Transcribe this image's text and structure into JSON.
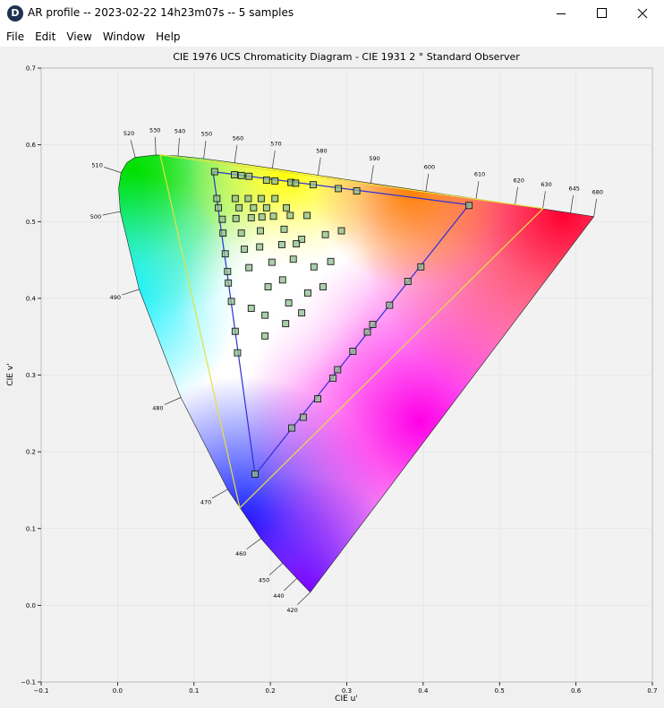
{
  "window": {
    "icon": "D",
    "title": "AR profile -- 2023-02-22 14h23m07s -- 5 samples"
  },
  "menu": [
    "File",
    "Edit",
    "View",
    "Window",
    "Help"
  ],
  "chart_data": {
    "type": "chromaticity",
    "title": "CIE 1976 UCS Chromaticity Diagram - CIE 1931 2 ° Standard Observer",
    "x_label": "CIE u'",
    "y_label": "CIE v'",
    "xlim": [
      -0.1,
      0.7
    ],
    "ylim": [
      -0.1,
      0.7
    ],
    "xticks": [
      {
        "value": -0.1,
        "label": "−0.1"
      },
      {
        "value": 0,
        "label": "0.0"
      },
      0.1,
      0.2,
      0.3,
      0.4,
      0.5,
      0.6,
      0.7
    ],
    "yticks": [
      {
        "value": -0.1,
        "label": "−0.1"
      },
      {
        "value": 0,
        "label": "0.0"
      },
      0.1,
      0.2,
      0.3,
      0.4,
      0.5,
      0.6,
      0.7
    ],
    "grid": true,
    "locus": {
      "wavelengths": [
        420,
        440,
        450,
        460,
        470,
        480,
        490,
        500,
        null,
        510,
        null,
        520,
        530,
        540,
        550,
        560,
        570,
        580,
        590,
        600,
        610,
        620,
        630,
        645,
        680
      ],
      "u": [
        0.2522,
        0.2347,
        0.2161,
        0.1877,
        0.1441,
        0.0828,
        0.0282,
        0.0035,
        0.0014,
        0.0046,
        0.0123,
        0.0231,
        0.0501,
        0.0792,
        0.1127,
        0.1531,
        0.2026,
        0.2623,
        0.3315,
        0.4035,
        0.4692,
        0.5203,
        0.5565,
        0.5929,
        0.6234
      ],
      "v": [
        0.0169,
        0.035,
        0.0549,
        0.0871,
        0.151,
        0.2708,
        0.4117,
        0.5131,
        0.5432,
        0.5638,
        0.577,
        0.5837,
        0.5868,
        0.5856,
        0.5821,
        0.5766,
        0.5694,
        0.5604,
        0.5501,
        0.5393,
        0.5296,
        0.5219,
        0.5165,
        0.5111,
        0.5065
      ]
    },
    "gamuts": [
      {
        "color": "#e6e040",
        "u": [
          0.0558,
          0.557,
          0.16
        ],
        "v": [
          0.587,
          0.517,
          0.127
        ]
      },
      {
        "color": "#2f2fd8",
        "u": [
          0.125,
          0.46,
          0.18
        ],
        "v": [
          0.565,
          0.522,
          0.17
        ]
      }
    ],
    "samples": {
      "color": "#8fbf8f",
      "u": [
        0.127,
        0.153,
        0.162,
        0.172,
        0.195,
        0.206,
        0.227,
        0.233,
        0.256,
        0.289,
        0.313,
        0.46,
        0.397,
        0.38,
        0.356,
        0.334,
        0.327,
        0.308,
        0.288,
        0.282,
        0.262,
        0.243,
        0.228,
        0.18,
        0.13,
        0.132,
        0.137,
        0.138,
        0.141,
        0.144,
        0.145,
        0.149,
        0.154,
        0.157,
        0.154,
        0.171,
        0.188,
        0.206,
        0.159,
        0.178,
        0.195,
        0.221,
        0.155,
        0.175,
        0.189,
        0.204,
        0.226,
        0.248,
        0.162,
        0.187,
        0.218,
        0.241,
        0.272,
        0.293,
        0.166,
        0.186,
        0.215,
        0.234,
        0.172,
        0.202,
        0.23,
        0.257,
        0.279,
        0.197,
        0.216,
        0.249,
        0.269,
        0.175,
        0.224,
        0.241,
        0.22,
        0.193,
        0.193
      ],
      "v": [
        0.565,
        0.561,
        0.56,
        0.559,
        0.554,
        0.553,
        0.551,
        0.55,
        0.548,
        0.543,
        0.54,
        0.521,
        0.441,
        0.422,
        0.391,
        0.366,
        0.356,
        0.331,
        0.307,
        0.296,
        0.269,
        0.245,
        0.231,
        0.171,
        0.53,
        0.518,
        0.503,
        0.485,
        0.458,
        0.435,
        0.42,
        0.396,
        0.357,
        0.329,
        0.53,
        0.53,
        0.53,
        0.53,
        0.518,
        0.518,
        0.518,
        0.518,
        0.504,
        0.505,
        0.506,
        0.507,
        0.508,
        0.508,
        0.485,
        0.488,
        0.49,
        0.477,
        0.483,
        0.488,
        0.464,
        0.467,
        0.47,
        0.471,
        0.44,
        0.447,
        0.451,
        0.441,
        0.448,
        0.415,
        0.424,
        0.407,
        0.415,
        0.387,
        0.394,
        0.381,
        0.367,
        0.378,
        0.351
      ]
    }
  }
}
